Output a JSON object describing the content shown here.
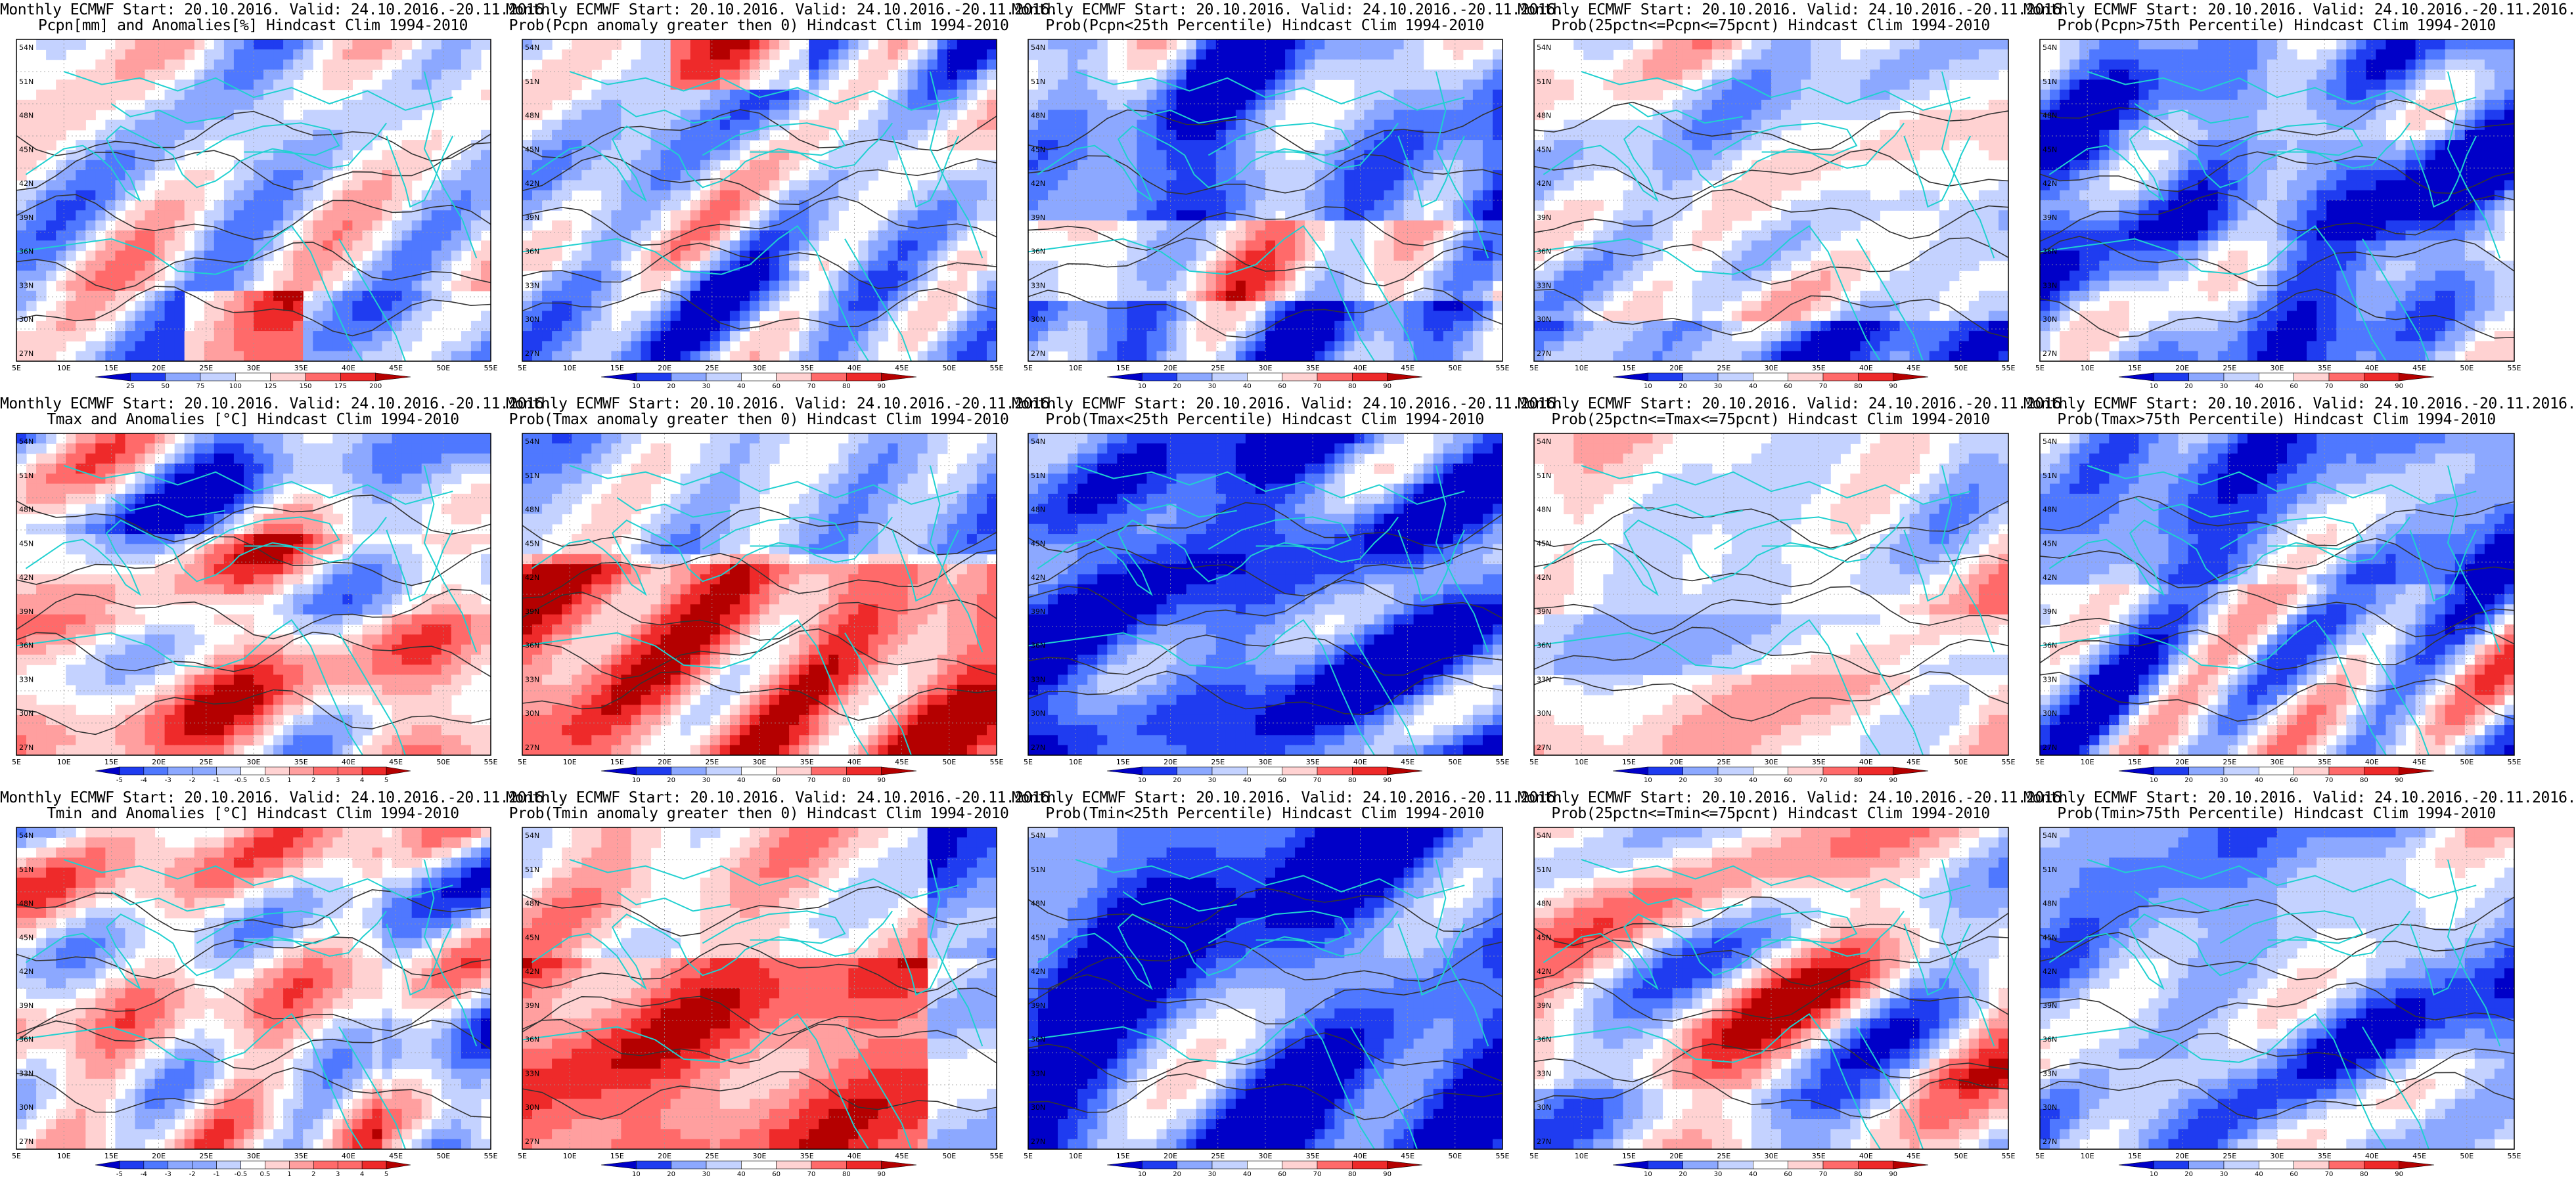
{
  "panels": [
    {
      "line1": "Monthly ECMWF Start: 20.10.2016. Valid: 24.10.2016.-20.11.2016.",
      "line2": "Pcpn[mm] and Anomalies[%] Hindcast Clim 1994-2010",
      "cbar": [
        "25",
        "50",
        "75",
        "100",
        "125",
        "150",
        "175",
        "200"
      ],
      "field": "precip-anomaly",
      "palette": "diverging"
    },
    {
      "line1": "Monthly ECMWF Start: 20.10.2016. Valid: 24.10.2016.-20.11.2016.",
      "line2": "Prob(Pcpn anomaly greater then 0) Hindcast Clim 1994-2010",
      "cbar": [
        "10",
        "20",
        "30",
        "40",
        "60",
        "70",
        "80",
        "90"
      ],
      "field": "prob",
      "palette": "diverging"
    },
    {
      "line1": "Monthly ECMWF Start: 20.10.2016. Valid: 24.10.2016.-20.11.2016.",
      "line2": "Prob(Pcpn<25th Percentile) Hindcast Clim 1994-2010",
      "cbar": [
        "10",
        "20",
        "30",
        "40",
        "60",
        "70",
        "80",
        "90"
      ],
      "field": "prob",
      "palette": "diverging"
    },
    {
      "line1": "Monthly ECMWF Start: 20.10.2016. Valid: 24.10.2016.-20.11.2016.",
      "line2": "Prob(25pctn<=Pcpn<=75pcnt) Hindcast Clim 1994-2010",
      "cbar": [
        "10",
        "20",
        "30",
        "40",
        "60",
        "70",
        "80",
        "90"
      ],
      "field": "prob",
      "palette": "diverging"
    },
    {
      "line1": "Monthly ECMWF Start: 20.10.2016. Valid: 24.10.2016.-20.11.2016.",
      "line2": "Prob(Pcpn>75th Percentile) Hindcast Clim 1994-2010",
      "cbar": [
        "10",
        "20",
        "30",
        "40",
        "60",
        "70",
        "80",
        "90"
      ],
      "field": "prob",
      "palette": "diverging"
    },
    {
      "line1": "Monthly ECMWF Start: 20.10.2016. Valid: 24.10.2016.-20.11.2016.",
      "line2": "Tmax and Anomalies [°C] Hindcast Clim 1994-2010",
      "cbar": [
        "-5",
        "-4",
        "-3",
        "-2",
        "-1",
        "-0.5",
        "0.5",
        "1",
        "2",
        "3",
        "4",
        "5"
      ],
      "field": "temp-anomaly",
      "palette": "diverging"
    },
    {
      "line1": "Monthly ECMWF Start: 20.10.2016. Valid: 24.10.2016.-20.11.2016.",
      "line2": "Prob(Tmax anomaly greater then 0) Hindcast Clim 1994-2010",
      "cbar": [
        "10",
        "20",
        "30",
        "40",
        "60",
        "70",
        "80",
        "90"
      ],
      "field": "prob",
      "palette": "diverging"
    },
    {
      "line1": "Monthly ECMWF Start: 20.10.2016. Valid: 24.10.2016.-20.11.2016.",
      "line2": "Prob(Tmax<25th Percentile) Hindcast Clim 1994-2010",
      "cbar": [
        "10",
        "20",
        "30",
        "40",
        "60",
        "70",
        "80",
        "90"
      ],
      "field": "prob",
      "palette": "diverging"
    },
    {
      "line1": "Monthly ECMWF Start: 20.10.2016. Valid: 24.10.2016.-20.11.2016.",
      "line2": "Prob(25pctn<=Tmax<=75pcnt) Hindcast Clim 1994-2010",
      "cbar": [
        "10",
        "20",
        "30",
        "40",
        "60",
        "70",
        "80",
        "90"
      ],
      "field": "prob",
      "palette": "diverging"
    },
    {
      "line1": "Monthly ECMWF Start: 20.10.2016. Valid: 24.10.2016.-20.11.2016.",
      "line2": "Prob(Tmax>75th Percentile) Hindcast Clim 1994-2010",
      "cbar": [
        "10",
        "20",
        "30",
        "40",
        "60",
        "70",
        "80",
        "90"
      ],
      "field": "prob",
      "palette": "diverging"
    },
    {
      "line1": "Monthly ECMWF Start: 20.10.2016. Valid: 24.10.2016.-20.11.2016.",
      "line2": "Tmin and Anomalies [°C] Hindcast Clim 1994-2010",
      "cbar": [
        "-5",
        "-4",
        "-3",
        "-2",
        "-1",
        "-0.5",
        "0.5",
        "1",
        "2",
        "3",
        "4",
        "5"
      ],
      "field": "temp-anomaly",
      "palette": "diverging"
    },
    {
      "line1": "Monthly ECMWF Start: 20.10.2016. Valid: 24.10.2016.-20.11.2016.",
      "line2": "Prob(Tmin anomaly greater then 0) Hindcast Clim 1994-2010",
      "cbar": [
        "10",
        "20",
        "30",
        "40",
        "60",
        "70",
        "80",
        "90"
      ],
      "field": "prob",
      "palette": "diverging"
    },
    {
      "line1": "Monthly ECMWF Start: 20.10.2016. Valid: 24.10.2016.-20.11.2016.",
      "line2": "Prob(Tmin<25th Percentile) Hindcast Clim 1994-2010",
      "cbar": [
        "10",
        "20",
        "30",
        "40",
        "60",
        "70",
        "80",
        "90"
      ],
      "field": "prob",
      "palette": "diverging"
    },
    {
      "line1": "Monthly ECMWF Start: 20.10.2016. Valid: 24.10.2016.-20.11.2016.",
      "line2": "Prob(25pctn<=Tmin<=75pcnt) Hindcast Clim 1994-2010",
      "cbar": [
        "10",
        "20",
        "30",
        "40",
        "60",
        "70",
        "80",
        "90"
      ],
      "field": "prob",
      "palette": "diverging"
    },
    {
      "line1": "Monthly ECMWF Start: 20.10.2016. Valid: 24.10.2016.-20.11.2016.",
      "line2": "Prob(Tmin>75th Percentile) Hindcast Clim 1994-2010",
      "cbar": [
        "10",
        "20",
        "30",
        "40",
        "60",
        "70",
        "80",
        "90"
      ],
      "field": "prob",
      "palette": "diverging"
    }
  ],
  "lat_labels": [
    "54N",
    "51N",
    "48N",
    "45N",
    "42N",
    "39N",
    "36N",
    "33N",
    "30N",
    "27N"
  ],
  "lon_labels": [
    "5E",
    "10E",
    "15E",
    "20E",
    "25E",
    "30E",
    "35E",
    "40E",
    "45E",
    "50E",
    "55E"
  ],
  "palette": [
    "#0000c8",
    "#1f3cf0",
    "#4f78ff",
    "#8ca8ff",
    "#c4d2ff",
    "#ffffff",
    "#ffd2d2",
    "#ff9f9f",
    "#ff6a6a",
    "#ee2a2a",
    "#b40000"
  ],
  "colors": {
    "coast": "#20d0d0",
    "contour": "#333333",
    "frame": "#000000"
  }
}
